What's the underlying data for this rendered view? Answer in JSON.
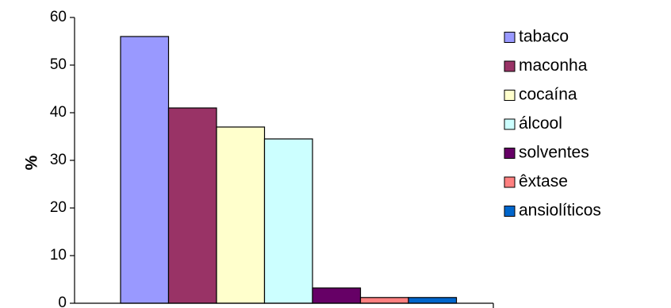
{
  "chart_data": {
    "type": "bar",
    "ylabel": "%",
    "xlabel": "",
    "ylim": [
      0,
      60
    ],
    "yticks": [
      0,
      10,
      20,
      30,
      40,
      50,
      60
    ],
    "grid": false,
    "legend_position": "right",
    "series": [
      {
        "name": "tabaco",
        "value": 56,
        "color": "#9999ff"
      },
      {
        "name": "maconha",
        "value": 41,
        "color": "#993366"
      },
      {
        "name": "cocaína",
        "value": 37,
        "color": "#ffffcc"
      },
      {
        "name": "álcool",
        "value": 34.5,
        "color": "#ccffff"
      },
      {
        "name": "solventes",
        "value": 3.2,
        "color": "#660066"
      },
      {
        "name": "êxtase",
        "value": 1.2,
        "color": "#ff8080"
      },
      {
        "name": "ansiolíticos",
        "value": 1.2,
        "color": "#0066cc"
      }
    ]
  }
}
